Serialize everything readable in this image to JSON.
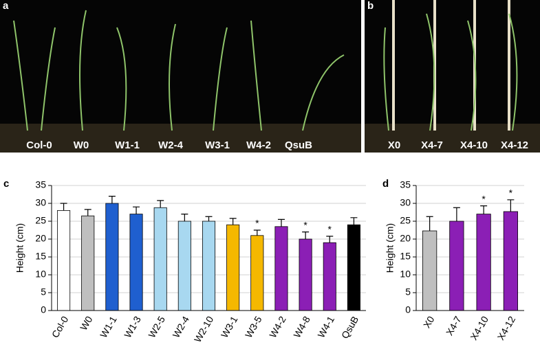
{
  "photos": [
    {
      "panel": "a",
      "labels": [
        "Col-0",
        "W0",
        "W1-1",
        "W2-4",
        "W3-1",
        "W4-2",
        "QsuB"
      ]
    },
    {
      "panel": "b",
      "labels": [
        "X0",
        "X4-7",
        "X4-10",
        "X4-12"
      ]
    }
  ],
  "chart_data": [
    {
      "type": "bar",
      "panel": "c",
      "ylabel": "Height (cm)",
      "categories": [
        "Col-0",
        "W0",
        "W1-1",
        "W1-3",
        "W2-5",
        "W2-4",
        "W2-10",
        "W3-1",
        "W3-5",
        "W4-2",
        "W4-8",
        "W4-1",
        "QsuB"
      ],
      "values": [
        28,
        26.5,
        30,
        27,
        28.8,
        25,
        25,
        24,
        21,
        23.5,
        20,
        19,
        24
      ],
      "errors": [
        2,
        1.8,
        2,
        2,
        2,
        2,
        1.3,
        1.8,
        1.5,
        2,
        2,
        1.8,
        2
      ],
      "colors": [
        "#ffffff",
        "#bfbfbf",
        "#1f5fcf",
        "#1f5fcf",
        "#a8d8f0",
        "#a8d8f0",
        "#a8d8f0",
        "#f5b800",
        "#f5b800",
        "#8b1fb5",
        "#8b1fb5",
        "#8b1fb5",
        "#000000"
      ],
      "significance": [
        null,
        null,
        null,
        null,
        null,
        null,
        null,
        null,
        "*",
        null,
        "*",
        "*",
        null
      ],
      "ylim": [
        0,
        35
      ],
      "yticks": [
        0,
        5,
        10,
        15,
        20,
        25,
        30,
        35
      ],
      "grid": true
    },
    {
      "type": "bar",
      "panel": "d",
      "ylabel": "Height (cm)",
      "categories": [
        "X0",
        "X4-7",
        "X4-10",
        "X4-12"
      ],
      "values": [
        22.3,
        25,
        27,
        27.7
      ],
      "errors": [
        4,
        3.8,
        2.3,
        3.3
      ],
      "colors": [
        "#bfbfbf",
        "#8b1fb5",
        "#8b1fb5",
        "#8b1fb5"
      ],
      "significance": [
        null,
        null,
        "*",
        "*"
      ],
      "ylim": [
        0,
        35
      ],
      "yticks": [
        0,
        5,
        10,
        15,
        20,
        25,
        30,
        35
      ],
      "grid": true
    }
  ]
}
